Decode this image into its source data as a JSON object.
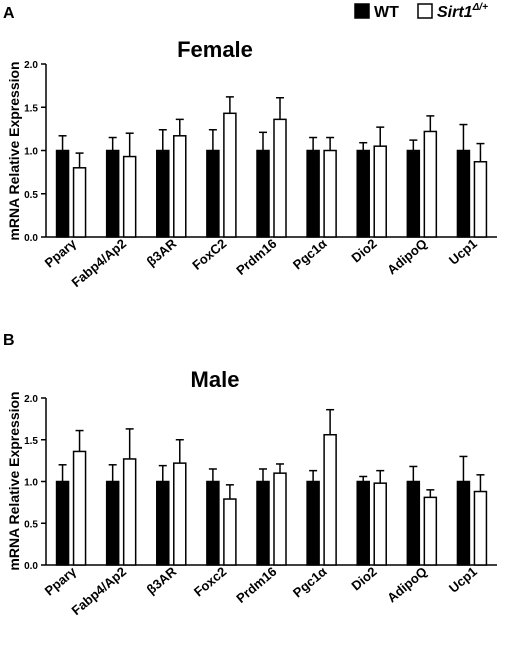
{
  "legend": {
    "wt_label": "WT",
    "mut_label_main": "Sirt1",
    "mut_label_sup": "Δ/+",
    "wt_color": "#000000",
    "mut_color": "#ffffff"
  },
  "chart_data": [
    {
      "panel": "A",
      "type": "bar",
      "title": "Female",
      "ylabel": "mRNA Relative Expression",
      "ylim": [
        0,
        2.0
      ],
      "yticks": [
        "0.0",
        "0.5",
        "1.0",
        "1.5",
        "2.0"
      ],
      "categories": [
        "Pparγ",
        "Fabp4/Ap2",
        "β3AR",
        "FoxC2",
        "Prdm16",
        "Pgc1α",
        "Dio2",
        "AdipoQ",
        "Ucp1"
      ],
      "series": [
        {
          "name": "WT",
          "values": [
            1.0,
            1.0,
            1.0,
            1.0,
            1.0,
            1.0,
            1.0,
            1.0,
            1.0
          ],
          "errors": [
            0.17,
            0.15,
            0.24,
            0.24,
            0.21,
            0.15,
            0.09,
            0.12,
            0.3
          ]
        },
        {
          "name": "Sirt1Δ/+",
          "values": [
            0.8,
            0.93,
            1.17,
            1.43,
            1.36,
            1.0,
            1.05,
            1.22,
            0.87
          ],
          "errors": [
            0.17,
            0.27,
            0.19,
            0.19,
            0.25,
            0.15,
            0.22,
            0.18,
            0.21
          ]
        }
      ]
    },
    {
      "panel": "B",
      "type": "bar",
      "title": "Male",
      "ylabel": "mRNA Relative Expression",
      "ylim": [
        0,
        2.0
      ],
      "yticks": [
        "0.0",
        "0.5",
        "1.0",
        "1.5",
        "2.0"
      ],
      "categories": [
        "Pparγ",
        "Fabp4/Ap2",
        "β3AR",
        "Foxc2",
        "Prdm16",
        "Pgc1α",
        "Dio2",
        "AdipoQ",
        "Ucp1"
      ],
      "series": [
        {
          "name": "WT",
          "values": [
            1.0,
            1.0,
            1.0,
            1.0,
            1.0,
            1.0,
            1.0,
            1.0,
            1.0
          ],
          "errors": [
            0.2,
            0.2,
            0.19,
            0.15,
            0.15,
            0.13,
            0.06,
            0.18,
            0.3
          ]
        },
        {
          "name": "Sirt1Δ/+",
          "values": [
            1.36,
            1.27,
            1.22,
            0.79,
            1.1,
            1.56,
            0.98,
            0.81,
            0.88
          ],
          "errors": [
            0.25,
            0.36,
            0.28,
            0.17,
            0.11,
            0.3,
            0.15,
            0.09,
            0.2
          ]
        }
      ]
    }
  ]
}
